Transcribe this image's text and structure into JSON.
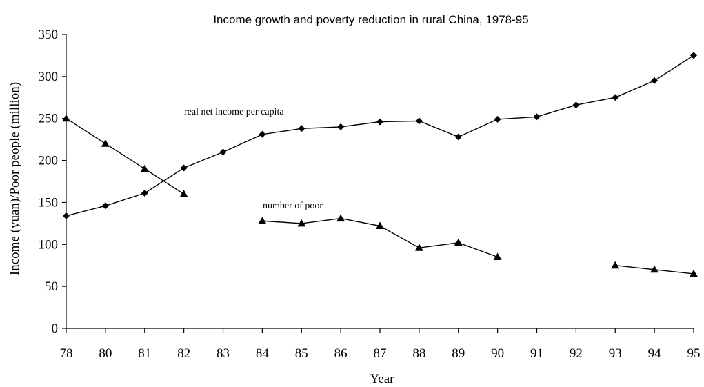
{
  "chart_data": {
    "type": "line",
    "title": "Income growth and poverty reduction in rural China, 1978-95",
    "xlabel": "Year",
    "ylabel": "Income (yuan)/Poor people (million)",
    "categories": [
      "78",
      "80",
      "81",
      "82",
      "83",
      "84",
      "85",
      "86",
      "87",
      "88",
      "89",
      "90",
      "91",
      "92",
      "93",
      "94",
      "95"
    ],
    "ylim": [
      0,
      350
    ],
    "yticks": [
      0,
      50,
      100,
      150,
      200,
      250,
      300,
      350
    ],
    "grid": false,
    "series": [
      {
        "label": "real net income per capita",
        "marker": "diamond",
        "values": [
          134,
          146,
          161,
          191,
          210,
          231,
          238,
          240,
          246,
          247,
          228,
          249,
          252,
          266,
          275,
          295,
          325
        ]
      },
      {
        "label": "number of poor",
        "marker": "triangle",
        "values": [
          250,
          220,
          190,
          160,
          null,
          128,
          125,
          131,
          122,
          96,
          102,
          85,
          null,
          null,
          75,
          70,
          65
        ]
      }
    ]
  }
}
